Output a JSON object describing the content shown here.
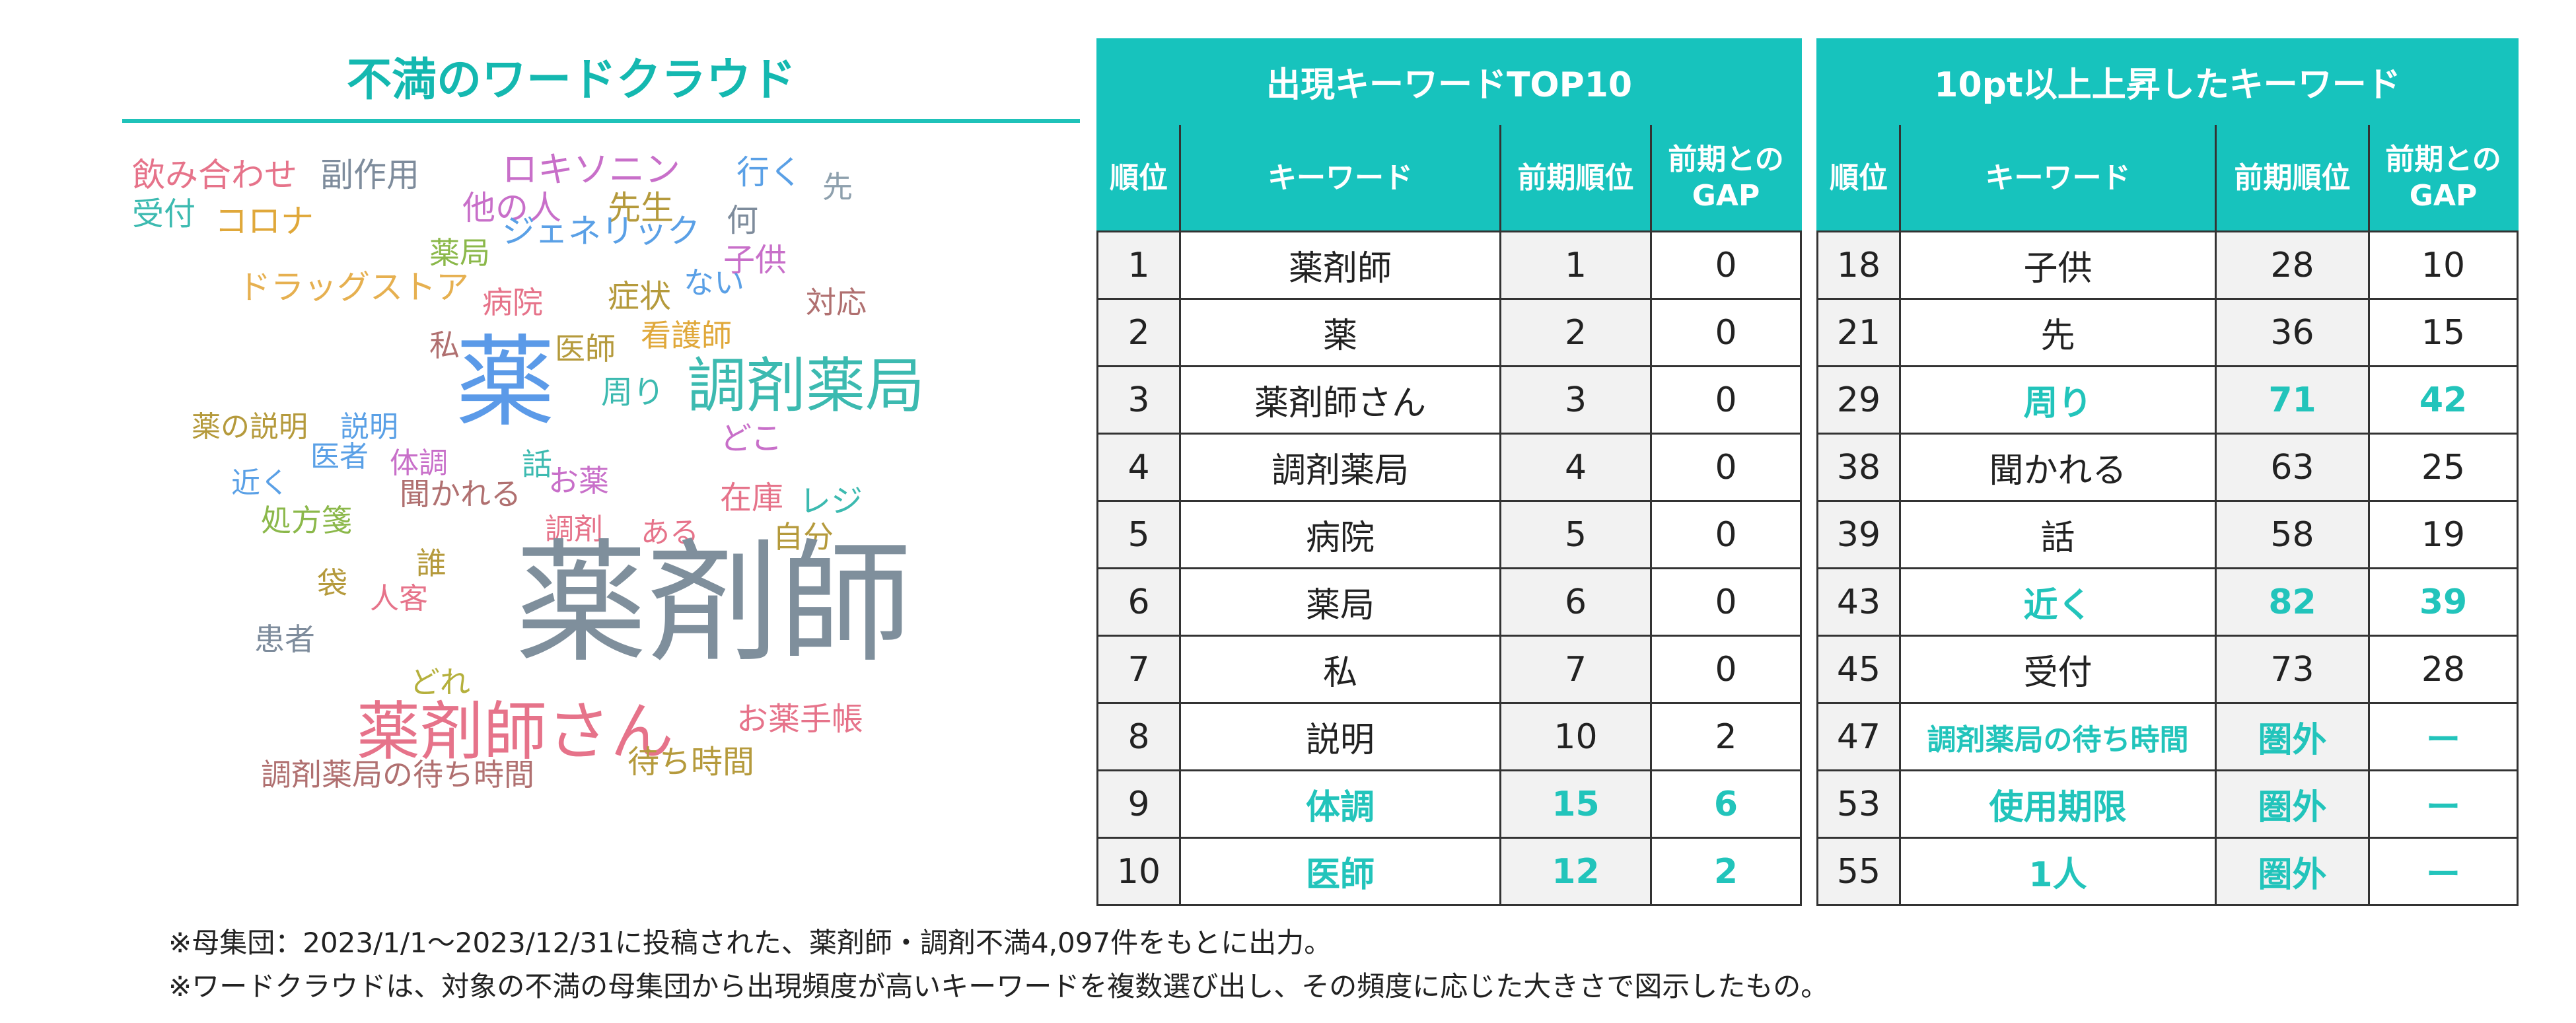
{
  "cloud": {
    "title": "不満のワードクラウド",
    "words": [
      {
        "text": "飲み合わせ",
        "color": "#e6738a"
      },
      {
        "text": "副作用",
        "color": "#7e8c9c"
      },
      {
        "text": "ロキソニン",
        "color": "#c86fc9"
      },
      {
        "text": "行く",
        "color": "#5aa0e6"
      },
      {
        "text": "先",
        "color": "#8ea0ad"
      },
      {
        "text": "受付",
        "color": "#3cbab0"
      },
      {
        "text": "コロナ",
        "color": "#e0a83a"
      },
      {
        "text": "他の人",
        "color": "#c86fc9"
      },
      {
        "text": "先生",
        "color": "#b59a3c"
      },
      {
        "text": "何",
        "color": "#7e8c9c"
      },
      {
        "text": "ジェネリック",
        "color": "#5aa0e6"
      },
      {
        "text": "薬局",
        "color": "#8bb84a"
      },
      {
        "text": "子供",
        "color": "#c86fc9"
      },
      {
        "text": "ない",
        "color": "#5aa0e6"
      },
      {
        "text": "ドラッグストア",
        "color": "#e6b050"
      },
      {
        "text": "病院",
        "color": "#e6738a"
      },
      {
        "text": "症状",
        "color": "#b59a3c"
      },
      {
        "text": "対応",
        "color": "#b07070"
      },
      {
        "text": "私",
        "color": "#b07070"
      },
      {
        "text": "医師",
        "color": "#b59a3c"
      },
      {
        "text": "看護師",
        "color": "#e0a83a"
      },
      {
        "text": "薬",
        "color": "#5b9ae8"
      },
      {
        "text": "調剤薬局",
        "color": "#3cbab0"
      },
      {
        "text": "周り",
        "color": "#3cbab0"
      },
      {
        "text": "薬の説明",
        "color": "#b59a3c"
      },
      {
        "text": "説明",
        "color": "#5aa0e6"
      },
      {
        "text": "どこ",
        "color": "#c86fc9"
      },
      {
        "text": "医者",
        "color": "#5aa0e6"
      },
      {
        "text": "体調",
        "color": "#c86fc9"
      },
      {
        "text": "話",
        "color": "#3cbab0"
      },
      {
        "text": "近く",
        "color": "#5aa0e6"
      },
      {
        "text": "聞かれる",
        "color": "#b07070"
      },
      {
        "text": "お薬",
        "color": "#c86fc9"
      },
      {
        "text": "在庫",
        "color": "#e6738a"
      },
      {
        "text": "レジ",
        "color": "#3cbab0"
      },
      {
        "text": "処方箋",
        "color": "#8bb84a"
      },
      {
        "text": "調剤",
        "color": "#e6738a"
      },
      {
        "text": "ある",
        "color": "#e6738a"
      },
      {
        "text": "自分",
        "color": "#b59a3c"
      },
      {
        "text": "誰",
        "color": "#b59a3c"
      },
      {
        "text": "袋",
        "color": "#b59a3c"
      },
      {
        "text": "人客",
        "color": "#e6738a"
      },
      {
        "text": "薬剤師",
        "color": "#7f8f9c"
      },
      {
        "text": "患者",
        "color": "#7e8c9c"
      },
      {
        "text": "どれ",
        "color": "#b5b03c"
      },
      {
        "text": "薬剤師さん",
        "color": "#e6738a"
      },
      {
        "text": "お薬手帳",
        "color": "#e6738a"
      },
      {
        "text": "調剤薬局の待ち時間",
        "color": "#b07070"
      },
      {
        "text": "待ち時間",
        "color": "#b59a3c"
      }
    ]
  },
  "top10": {
    "title": "出現キーワードTOP10",
    "headers": [
      "順位",
      "キーワード",
      "前期順位",
      "前期との\nGAP"
    ],
    "rows": [
      {
        "rank": "1",
        "keyword": "薬剤師",
        "prev": "1",
        "gap": "0",
        "hl": false
      },
      {
        "rank": "2",
        "keyword": "薬",
        "prev": "2",
        "gap": "0",
        "hl": false
      },
      {
        "rank": "3",
        "keyword": "薬剤師さん",
        "prev": "3",
        "gap": "0",
        "hl": false
      },
      {
        "rank": "4",
        "keyword": "調剤薬局",
        "prev": "4",
        "gap": "0",
        "hl": false
      },
      {
        "rank": "5",
        "keyword": "病院",
        "prev": "5",
        "gap": "0",
        "hl": false
      },
      {
        "rank": "6",
        "keyword": "薬局",
        "prev": "6",
        "gap": "0",
        "hl": false
      },
      {
        "rank": "7",
        "keyword": "私",
        "prev": "7",
        "gap": "0",
        "hl": false
      },
      {
        "rank": "8",
        "keyword": "説明",
        "prev": "10",
        "gap": "2",
        "hl": false
      },
      {
        "rank": "9",
        "keyword": "体調",
        "prev": "15",
        "gap": "6",
        "hl": true
      },
      {
        "rank": "10",
        "keyword": "医師",
        "prev": "12",
        "gap": "2",
        "hl": true
      }
    ]
  },
  "rising": {
    "title": "10pt以上上昇したキーワード",
    "headers": [
      "順位",
      "キーワード",
      "前期順位",
      "前期との\nGAP"
    ],
    "rows": [
      {
        "rank": "18",
        "keyword": "子供",
        "prev": "28",
        "gap": "10",
        "hl": false
      },
      {
        "rank": "21",
        "keyword": "先",
        "prev": "36",
        "gap": "15",
        "hl": false
      },
      {
        "rank": "29",
        "keyword": "周り",
        "prev": "71",
        "gap": "42",
        "hl": true
      },
      {
        "rank": "38",
        "keyword": "聞かれる",
        "prev": "63",
        "gap": "25",
        "hl": false
      },
      {
        "rank": "39",
        "keyword": "話",
        "prev": "58",
        "gap": "19",
        "hl": false
      },
      {
        "rank": "43",
        "keyword": "近く",
        "prev": "82",
        "gap": "39",
        "hl": true
      },
      {
        "rank": "45",
        "keyword": "受付",
        "prev": "73",
        "gap": "28",
        "hl": false
      },
      {
        "rank": "47",
        "keyword": "調剤薬局の待ち時間",
        "prev": "圏外",
        "gap": "ー",
        "hl": true
      },
      {
        "rank": "53",
        "keyword": "使用期限",
        "prev": "圏外",
        "gap": "ー",
        "hl": true
      },
      {
        "rank": "55",
        "keyword": "1人",
        "prev": "圏外",
        "gap": "ー",
        "hl": true
      }
    ]
  },
  "notes": [
    "※母集団：2023/1/1～2023/12/31に投稿された、薬剤師・調剤不満4,097件をもとに出力。",
    "※ワードクラウドは、対象の不満の母集団から出現頻度が高いキーワードを複数選び出し、その頻度に応じた大きさで図示したもの。"
  ]
}
